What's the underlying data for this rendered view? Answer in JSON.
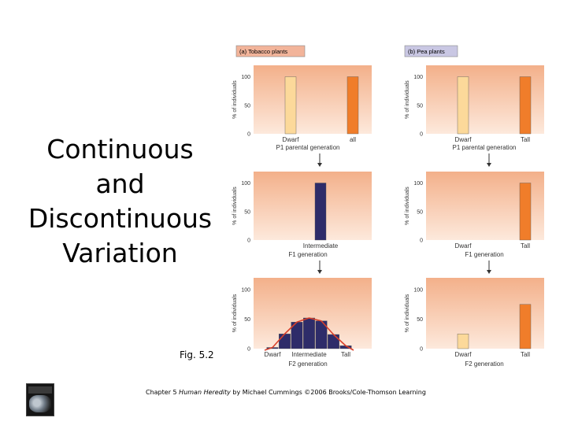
{
  "slide": {
    "title_lines": [
      "Continuous",
      "and",
      "Discontinuous",
      "Variation"
    ],
    "fig_label": "Fig. 5.2",
    "footer_pre": "Chapter 5 ",
    "footer_italic": "Human Heredity",
    "footer_post": " by Michael Cummings ©2006 Brooks/Cole-Thomson Learning",
    "book_cover": "HUMAN HEREDITY"
  },
  "colors": {
    "panel_top": "#f3b08a",
    "panel_bottom": "#fde9dc",
    "orange_bar": "#f07d2a",
    "yellow_bar": "#fcd99a",
    "navy_bar": "#2e2c69",
    "curve": "#d8402a",
    "header_tobacco_bg": "#f2b49a",
    "header_pea_bg": "#c9c7e3",
    "arrow": "#333333"
  },
  "chart_data": [
    {
      "type": "bar",
      "panel": "tobacco-parental",
      "header": "(a) Tobacco plants",
      "categories": [
        "Dwarf",
        "all"
      ],
      "values": [
        100,
        100
      ],
      "bar_colors": [
        "#fcd99a",
        "#f07d2a"
      ],
      "ylabel": "% of individuals",
      "yticks": [
        "0",
        "50",
        "100"
      ],
      "ylim": [
        0,
        120
      ],
      "generation_label": "P1 parental generation"
    },
    {
      "type": "bar",
      "panel": "pea-parental",
      "header": "(b) Pea plants",
      "categories": [
        "Dwarf",
        "Tall"
      ],
      "values": [
        100,
        100
      ],
      "bar_colors": [
        "#fcd99a",
        "#f07d2a"
      ],
      "ylabel": "% of individuals",
      "yticks": [
        "0",
        "50",
        "100"
      ],
      "ylim": [
        0,
        120
      ],
      "generation_label": "P1 parental generation"
    },
    {
      "type": "bar",
      "panel": "tobacco-f1",
      "categories": [
        "Intermediate"
      ],
      "values": [
        100
      ],
      "bar_colors": [
        "#2e2c69"
      ],
      "ylabel": "% of individuals",
      "yticks": [
        "0",
        "50",
        "100"
      ],
      "ylim": [
        0,
        120
      ],
      "generation_label": "F1 generation"
    },
    {
      "type": "bar",
      "panel": "pea-f1",
      "categories": [
        "Dwarf",
        "Tall"
      ],
      "values": [
        0,
        100
      ],
      "bar_colors": [
        "#fcd99a",
        "#f07d2a"
      ],
      "ylabel": "% of individuals",
      "yticks": [
        "0",
        "50",
        "100"
      ],
      "ylim": [
        0,
        120
      ],
      "generation_label": "F1 generation"
    },
    {
      "type": "bar",
      "panel": "tobacco-f2",
      "categories": [
        "Dwarf",
        "",
        "",
        "Intermediate",
        "",
        "",
        "Tall"
      ],
      "values": [
        2,
        25,
        45,
        52,
        47,
        24,
        5
      ],
      "bar_colors": [
        "#2e2c69",
        "#2e2c69",
        "#2e2c69",
        "#2e2c69",
        "#2e2c69",
        "#2e2c69",
        "#2e2c69"
      ],
      "curve": true,
      "ylabel": "% of individuals",
      "yticks": [
        "0",
        "50",
        "100"
      ],
      "ylim": [
        0,
        120
      ],
      "generation_label": "F2 generation"
    },
    {
      "type": "bar",
      "panel": "pea-f2",
      "categories": [
        "Dwarf",
        "Tall"
      ],
      "values": [
        25,
        75
      ],
      "bar_colors": [
        "#fcd99a",
        "#f07d2a"
      ],
      "ylabel": "% of individuals",
      "yticks": [
        "0",
        "50",
        "100"
      ],
      "ylim": [
        0,
        120
      ],
      "generation_label": "F2 generation"
    }
  ]
}
